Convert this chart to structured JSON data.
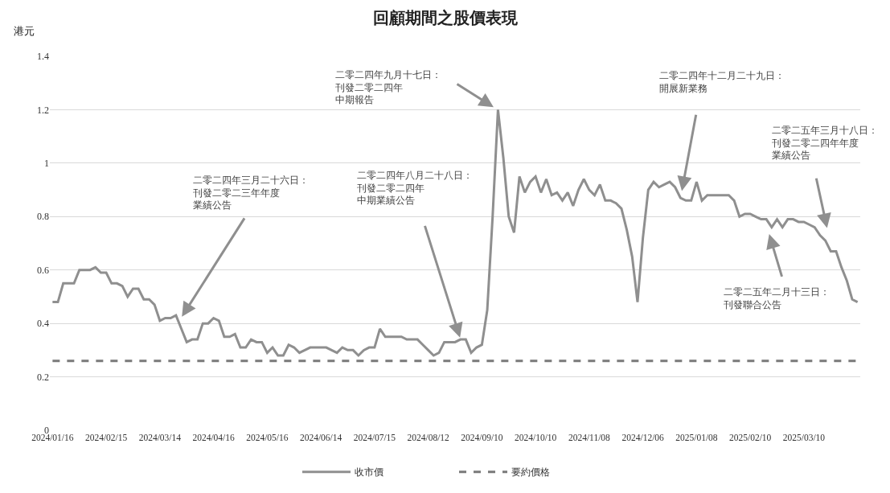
{
  "chart_data": {
    "type": "line",
    "title": "回顧期間之股價表現",
    "ylabel": "港元",
    "categories": [
      "2024/01/16",
      null,
      null,
      null,
      null,
      null,
      null,
      null,
      null,
      null,
      "2024/02/15",
      null,
      null,
      null,
      null,
      null,
      null,
      null,
      null,
      null,
      "2024/03/14",
      null,
      null,
      null,
      null,
      null,
      null,
      null,
      null,
      null,
      "2024/04/16",
      null,
      null,
      null,
      null,
      null,
      null,
      null,
      null,
      null,
      "2024/05/16",
      null,
      null,
      null,
      null,
      null,
      null,
      null,
      null,
      null,
      "2024/06/14",
      null,
      null,
      null,
      null,
      null,
      null,
      null,
      null,
      null,
      "2024/07/15",
      null,
      null,
      null,
      null,
      null,
      null,
      null,
      null,
      null,
      "2024/08/12",
      null,
      null,
      null,
      null,
      null,
      null,
      null,
      null,
      null,
      "2024/09/10",
      null,
      null,
      null,
      null,
      null,
      null,
      null,
      null,
      null,
      "2024/10/10",
      null,
      null,
      null,
      null,
      null,
      null,
      null,
      null,
      null,
      "2024/11/08",
      null,
      null,
      null,
      null,
      null,
      null,
      null,
      null,
      null,
      "2024/12/06",
      null,
      null,
      null,
      null,
      null,
      null,
      null,
      null,
      null,
      "2025/01/08",
      null,
      null,
      null,
      null,
      null,
      null,
      null,
      null,
      null,
      "2025/02/10",
      null,
      null,
      null,
      null,
      null,
      null,
      null,
      null,
      null,
      "2025/03/10",
      null,
      null,
      null,
      null,
      null,
      null,
      null,
      null,
      null,
      null
    ],
    "series": [
      {
        "name": "收市價",
        "color": "#8f8f8f",
        "line_style": "solid",
        "values": [
          0.48,
          0.48,
          0.55,
          0.55,
          0.55,
          0.6,
          0.6,
          0.6,
          0.61,
          0.59,
          0.59,
          0.55,
          0.55,
          0.54,
          0.5,
          0.53,
          0.53,
          0.49,
          0.49,
          0.47,
          0.41,
          0.42,
          0.42,
          0.43,
          0.38,
          0.33,
          0.34,
          0.34,
          0.4,
          0.4,
          0.42,
          0.41,
          0.35,
          0.35,
          0.36,
          0.31,
          0.31,
          0.34,
          0.33,
          0.33,
          0.29,
          0.31,
          0.28,
          0.28,
          0.32,
          0.31,
          0.29,
          0.3,
          0.31,
          0.31,
          0.31,
          0.31,
          0.3,
          0.29,
          0.31,
          0.3,
          0.3,
          0.28,
          0.3,
          0.31,
          0.31,
          0.38,
          0.35,
          0.35,
          0.35,
          0.35,
          0.34,
          0.34,
          0.34,
          0.32,
          0.3,
          0.28,
          0.29,
          0.33,
          0.33,
          0.33,
          0.34,
          0.34,
          0.29,
          0.31,
          0.32,
          0.45,
          0.8,
          1.2,
          1.02,
          0.8,
          0.74,
          0.95,
          0.89,
          0.93,
          0.95,
          0.89,
          0.94,
          0.88,
          0.89,
          0.86,
          0.89,
          0.84,
          0.9,
          0.94,
          0.9,
          0.88,
          0.92,
          0.86,
          0.86,
          0.85,
          0.83,
          0.75,
          0.65,
          0.48,
          0.72,
          0.9,
          0.93,
          0.91,
          0.92,
          0.93,
          0.91,
          0.87,
          0.86,
          0.86,
          0.93,
          0.86,
          0.88,
          0.88,
          0.88,
          0.88,
          0.88,
          0.86,
          0.8,
          0.81,
          0.81,
          0.8,
          0.79,
          0.79,
          0.76,
          0.79,
          0.76,
          0.79,
          0.79,
          0.78,
          0.78,
          0.77,
          0.76,
          0.73,
          0.71,
          0.67,
          0.67,
          0.61,
          0.56,
          0.49,
          0.48
        ]
      },
      {
        "name": "要約價格",
        "color": "#7a7a7a",
        "line_style": "dashed",
        "values": [
          0.26,
          0.26,
          0.26,
          0.26,
          0.26,
          0.26,
          0.26,
          0.26,
          0.26,
          0.26,
          0.26,
          0.26,
          0.26,
          0.26,
          0.26,
          0.26,
          0.26,
          0.26,
          0.26,
          0.26,
          0.26,
          0.26,
          0.26,
          0.26,
          0.26,
          0.26,
          0.26,
          0.26,
          0.26,
          0.26,
          0.26,
          0.26,
          0.26,
          0.26,
          0.26,
          0.26,
          0.26,
          0.26,
          0.26,
          0.26,
          0.26,
          0.26,
          0.26,
          0.26,
          0.26,
          0.26,
          0.26,
          0.26,
          0.26,
          0.26,
          0.26,
          0.26,
          0.26,
          0.26,
          0.26,
          0.26,
          0.26,
          0.26,
          0.26,
          0.26,
          0.26,
          0.26,
          0.26,
          0.26,
          0.26,
          0.26,
          0.26,
          0.26,
          0.26,
          0.26,
          0.26,
          0.26,
          0.26,
          0.26,
          0.26,
          0.26,
          0.26,
          0.26,
          0.26,
          0.26,
          0.26,
          0.26,
          0.26,
          0.26,
          0.26,
          0.26,
          0.26,
          0.26,
          0.26,
          0.26,
          0.26,
          0.26,
          0.26,
          0.26,
          0.26,
          0.26,
          0.26,
          0.26,
          0.26,
          0.26,
          0.26,
          0.26,
          0.26,
          0.26,
          0.26,
          0.26,
          0.26,
          0.26,
          0.26,
          0.26,
          0.26,
          0.26,
          0.26,
          0.26,
          0.26,
          0.26,
          0.26,
          0.26,
          0.26,
          0.26,
          0.26,
          0.26,
          0.26,
          0.26,
          0.26,
          0.26,
          0.26,
          0.26,
          0.26,
          0.26,
          0.26,
          0.26,
          0.26,
          0.26,
          0.26,
          0.26,
          0.26,
          0.26,
          0.26,
          0.26,
          0.26,
          0.26,
          0.26,
          0.26,
          0.26,
          0.26,
          0.26,
          0.26,
          0.26,
          0.26,
          0.26
        ]
      }
    ],
    "ylim": [
      0,
      1.4
    ],
    "yticks": [
      0,
      0.2,
      0.4,
      0.6,
      0.8,
      1,
      1.2,
      1.4
    ],
    "grid": "y",
    "legend": "bottom",
    "marker": "none",
    "annotations": [
      "二零二四年三月二十六日：刊發二零二三年年度業績公告",
      "二零二四年八月二十八日：刊發二零二四年中期業績公告",
      "二零二四年九月十七日：刊發二零二四年中期報告",
      "二零二四年十二月二十九日：開展新業務",
      "二零二五年三月十八日：刊發二零二四年年度業績公告",
      "二零二五年二月十三日：刊發聯合公告"
    ]
  }
}
